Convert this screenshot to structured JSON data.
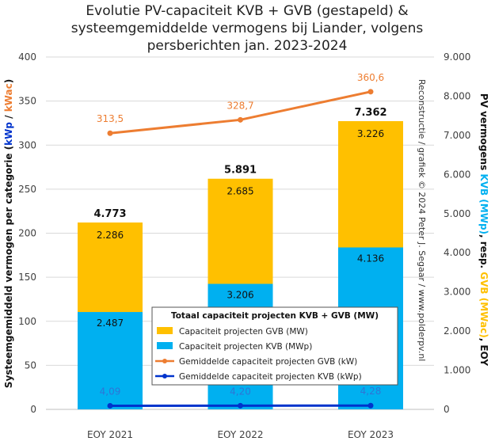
{
  "chart_data": {
    "type": "bar",
    "title": [
      "Evolutie PV-capaciteit KVB + GVB (gestapeld) &",
      "systeemgemiddelde vermogens bij Liander, volgens",
      "persberichten jan. 2023-2024"
    ],
    "categories": [
      "EOY 2021",
      "EOY 2022",
      "EOY 2023"
    ],
    "bar_series": [
      {
        "name": "Capaciteit projecten KVB (MWp)",
        "values": [
          2487,
          3206,
          4136
        ],
        "labels": [
          "2.487",
          "3.206",
          "4.136"
        ],
        "color": "#00B0F0"
      },
      {
        "name": "Capaciteit projecten GVB (MW)",
        "values": [
          2286,
          2685,
          3226
        ],
        "labels": [
          "2.286",
          "2.685",
          "3.226"
        ],
        "color": "#FFC000"
      }
    ],
    "totals": {
      "values": [
        4773,
        5891,
        7362
      ],
      "labels": [
        "4.773",
        "5.891",
        "7.362"
      ]
    },
    "line_series": [
      {
        "name": "Gemiddelde capaciteit projecten GVB (kW)",
        "values": [
          313.5,
          328.7,
          360.6
        ],
        "labels": [
          "313,5",
          "328,7",
          "360,6"
        ],
        "color": "#ED7D31"
      },
      {
        "name": "Gemiddelde capaciteit projecten KVB (kWp)",
        "values": [
          4.09,
          4.2,
          4.28
        ],
        "labels": [
          "4,09",
          "4,20",
          "4,28"
        ],
        "color": "#0033CC"
      }
    ],
    "y_left": {
      "lim": [
        0,
        400
      ],
      "ticks": [
        "0",
        "50",
        "100",
        "150",
        "200",
        "250",
        "300",
        "350",
        "400"
      ],
      "label_parts": [
        {
          "text": "Systeemgemiddeld vermogen per categorie (",
          "color": "#111111"
        },
        {
          "text": "kWp",
          "color": "#0033CC"
        },
        {
          "text": " / ",
          "color": "#111111"
        },
        {
          "text": "kWac",
          "color": "#ED7D31"
        },
        {
          "text": ")",
          "color": "#111111"
        }
      ]
    },
    "y_right": {
      "lim": [
        0,
        9000
      ],
      "ticks": [
        "0",
        "1.000",
        "2.000",
        "3.000",
        "4.000",
        "5.000",
        "6.000",
        "7.000",
        "8.000",
        "9.000"
      ],
      "label_parts": [
        {
          "text": "PV vermogens ",
          "color": "#111111"
        },
        {
          "text": "KVB (MWp)",
          "color": "#00B0F0"
        },
        {
          "text": ", resp. ",
          "color": "#111111"
        },
        {
          "text": "GVB (MWac)",
          "color": "#FFC000"
        },
        {
          "text": ", EOY",
          "color": "#111111"
        }
      ]
    },
    "legend": {
      "title": "Totaal capaciteit projecten KVB + GVB (MW)",
      "placement": "lower-right",
      "items": [
        "Capaciteit projecten GVB (MW)",
        "Capaciteit projecten KVB (MWp)",
        "Gemiddelde capaciteit projecten GVB (kW)",
        "Gemiddelde capaciteit projecten KVB (kWp)"
      ]
    },
    "credit": "Reconstructie / grafiek © 2024 Peter J. Segaar / www.polderpv.nl",
    "grid": true
  }
}
